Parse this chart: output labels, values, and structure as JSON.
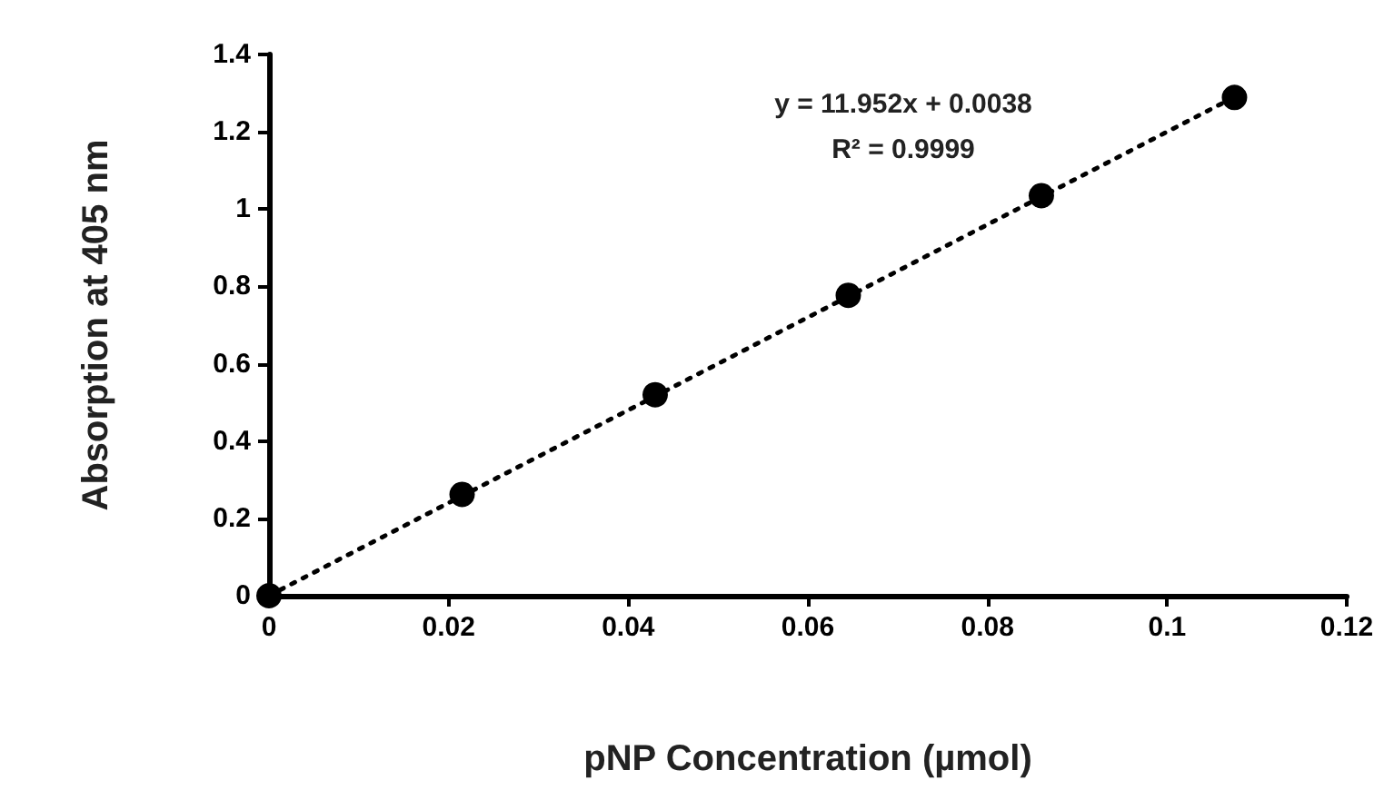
{
  "chart_data": {
    "type": "scatter",
    "xlabel": "pNP Concentration (µmol)",
    "ylabel": "Absorption at 405 nm",
    "annotations": [
      "y = 11.952x + 0.0038",
      "R² = 0.9999"
    ],
    "xlim": [
      0,
      0.12
    ],
    "xticks": [
      0,
      0.02,
      0.04,
      0.06,
      0.08,
      0.1,
      0.12
    ],
    "ylim": [
      0,
      1.4
    ],
    "yticks": [
      0,
      0.2,
      0.4,
      0.6,
      0.8,
      1,
      1.2,
      1.4
    ],
    "grid": false,
    "series": [
      {
        "color": "#000000",
        "marker": "circle",
        "x": [
          0,
          0.0215,
          0.043,
          0.0645,
          0.086,
          0.1075
        ],
        "values": [
          0,
          0.262,
          0.52,
          0.777,
          1.035,
          1.289
        ]
      },
      {
        "type": "line",
        "color": "#000000",
        "line_style": "dotted",
        "x": [
          0,
          0.1075
        ],
        "values": [
          0,
          1.29
        ]
      }
    ]
  }
}
